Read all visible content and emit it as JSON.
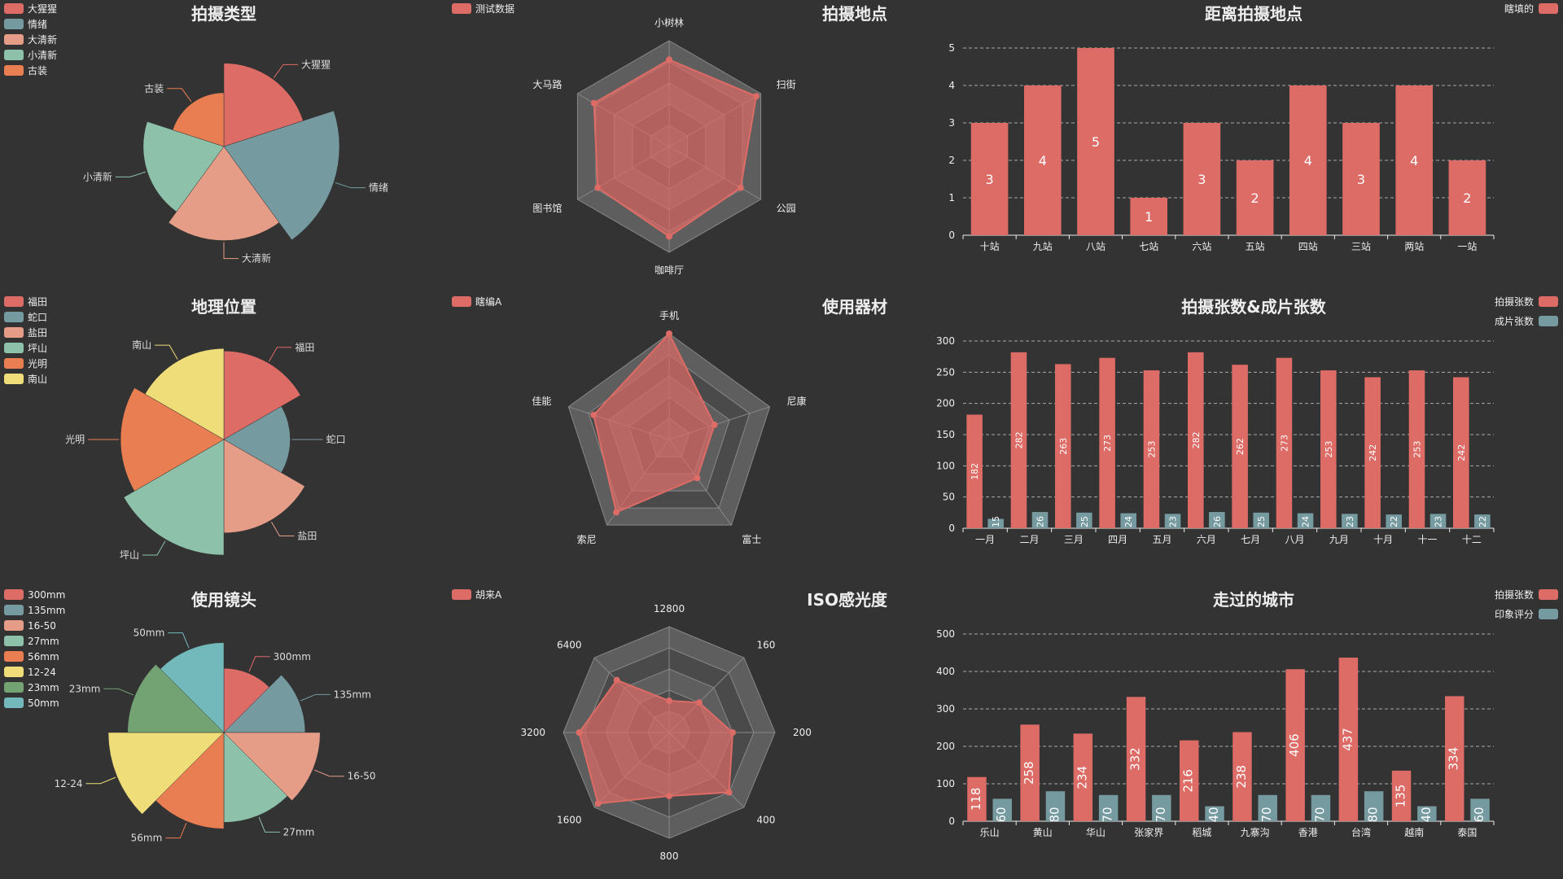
{
  "chart_data": [
    {
      "id": "pie1",
      "type": "pie",
      "variant": "rose-radius",
      "title": "拍摄类型",
      "legend_position": "top-left",
      "categories": [
        "大猩猩",
        "情绪",
        "大清新",
        "小清新",
        "古装"
      ],
      "values": [
        31,
        43,
        35,
        30,
        20
      ],
      "colors": [
        "#dd6b66",
        "#759aa0",
        "#e69d87",
        "#8dc1a9",
        "#ea7e53"
      ]
    },
    {
      "id": "radar1",
      "type": "radar",
      "title": "拍摄地点",
      "legend_position": "top-left",
      "series": [
        {
          "name": "测试数据",
          "values": [
            82,
            95,
            78,
            85,
            78,
            82
          ]
        }
      ],
      "indicators": [
        "小树林",
        "扫街",
        "公园",
        "咖啡厅",
        "图书馆",
        "大马路"
      ],
      "max": 100,
      "color": "#dd6b66"
    },
    {
      "id": "bar1",
      "type": "bar",
      "title": "距离拍摄地点",
      "legend_position": "top-right",
      "categories": [
        "十站",
        "九站",
        "八站",
        "七站",
        "六站",
        "五站",
        "四站",
        "三站",
        "两站",
        "一站"
      ],
      "series": [
        {
          "name": "瞎填的",
          "values": [
            3,
            4,
            5,
            1,
            3,
            2,
            4,
            3,
            4,
            2
          ],
          "color": "#dd6b66"
        }
      ],
      "y_ticks": [
        0,
        1,
        2,
        3,
        4,
        5
      ],
      "ylim": [
        0,
        5
      ],
      "grid": true
    },
    {
      "id": "pie2",
      "type": "pie",
      "variant": "rose-radius",
      "title": "地理位置",
      "legend_position": "top-left",
      "categories": [
        "福田",
        "蛇口",
        "盐田",
        "坪山",
        "光明",
        "南山"
      ],
      "values": [
        36,
        27,
        38,
        47,
        42,
        37
      ],
      "colors": [
        "#dd6b66",
        "#759aa0",
        "#e69d87",
        "#8dc1a9",
        "#ea7e53",
        "#eedd78"
      ]
    },
    {
      "id": "radar2",
      "type": "radar",
      "title": "使用器材",
      "legend_position": "top-left",
      "series": [
        {
          "name": "瞎编A",
          "values": [
            100,
            45,
            45,
            85,
            75
          ]
        }
      ],
      "indicators": [
        "手机",
        "尼康",
        "富士",
        "索尼",
        "佳能"
      ],
      "max": 100,
      "color": "#dd6b66"
    },
    {
      "id": "bar2",
      "type": "bar",
      "title": "拍摄张数&成片张数",
      "legend_position": "top-right",
      "categories": [
        "一月",
        "二月",
        "三月",
        "四月",
        "五月",
        "六月",
        "七月",
        "八月",
        "九月",
        "十月",
        "十一",
        "十二"
      ],
      "series": [
        {
          "name": "拍摄张数",
          "values": [
            182,
            282,
            263,
            273,
            253,
            282,
            262,
            273,
            253,
            242,
            253,
            242
          ],
          "color": "#dd6b66"
        },
        {
          "name": "成片张数",
          "values": [
            15,
            26,
            25,
            24,
            23,
            26,
            25,
            24,
            23,
            22,
            23,
            22
          ],
          "color": "#759aa0"
        }
      ],
      "y_ticks": [
        0,
        50,
        100,
        150,
        200,
        250,
        300
      ],
      "ylim": [
        0,
        300
      ],
      "grid": true
    },
    {
      "id": "pie3",
      "type": "pie",
      "variant": "rose-radius",
      "title": "使用镜头",
      "legend_position": "top-left",
      "categories": [
        "300mm",
        "135mm",
        "16-50",
        "27mm",
        "56mm",
        "12-24",
        "23mm",
        "50mm"
      ],
      "values": [
        30,
        38,
        45,
        42,
        45,
        54,
        45,
        42
      ],
      "colors": [
        "#dd6b66",
        "#759aa0",
        "#e69d87",
        "#8dc1a9",
        "#ea7e53",
        "#eedd78",
        "#73a373",
        "#73b9bc"
      ]
    },
    {
      "id": "radar3",
      "type": "radar",
      "title": "ISO感光度",
      "legend_position": "top-left",
      "series": [
        {
          "name": "胡来A",
          "values": [
            30,
            40,
            60,
            80,
            60,
            95,
            85,
            70
          ]
        }
      ],
      "indicators": [
        "12800",
        "160",
        "200",
        "400",
        "800",
        "1600",
        "3200",
        "6400"
      ],
      "max": 100,
      "color": "#dd6b66"
    },
    {
      "id": "bar3",
      "type": "bar",
      "title": "走过的城市",
      "legend_position": "top-right",
      "categories": [
        "乐山",
        "黄山",
        "华山",
        "张家界",
        "稻城",
        "九寨沟",
        "香港",
        "台湾",
        "越南",
        "泰国"
      ],
      "series": [
        {
          "name": "拍摄张数",
          "values": [
            118,
            258,
            234,
            332,
            216,
            238,
            406,
            437,
            135,
            334
          ],
          "color": "#dd6b66"
        },
        {
          "name": "印象评分",
          "values": [
            60,
            80,
            70,
            70,
            40,
            70,
            70,
            80,
            40,
            60
          ],
          "color": "#759aa0"
        }
      ],
      "y_ticks": [
        0,
        100,
        200,
        300,
        400,
        500
      ],
      "ylim": [
        0,
        500
      ],
      "grid": true
    }
  ]
}
